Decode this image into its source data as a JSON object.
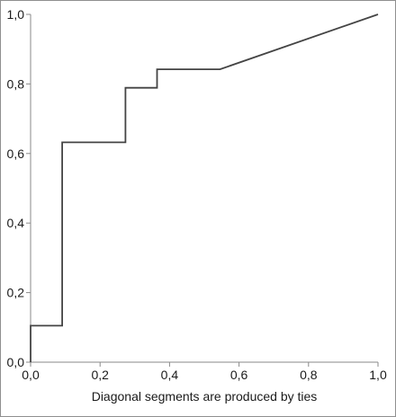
{
  "chart_data": {
    "type": "line",
    "title": "",
    "xlabel": "Diagonal segments are produced by ties",
    "ylabel": "",
    "xlim": [
      0,
      1
    ],
    "ylim": [
      0,
      1
    ],
    "x_ticks": [
      0,
      0.2,
      0.4,
      0.6,
      0.8,
      1.0
    ],
    "y_ticks": [
      0,
      0.2,
      0.4,
      0.6,
      0.8,
      1.0
    ],
    "x_tick_labels": [
      "0,0",
      "0,2",
      "0,4",
      "0,6",
      "0,8",
      "1,0"
    ],
    "y_tick_labels": [
      "0,0",
      "0,2",
      "0,4",
      "0,6",
      "0,8",
      "1,0"
    ],
    "grid": false,
    "legend": "none",
    "line_color": "#444444",
    "axis_color": "#8a8a8a",
    "series": [
      {
        "points": [
          [
            0.0,
            0.0
          ],
          [
            0.0,
            0.105
          ],
          [
            0.091,
            0.105
          ],
          [
            0.091,
            0.632
          ],
          [
            0.273,
            0.632
          ],
          [
            0.273,
            0.789
          ],
          [
            0.364,
            0.789
          ],
          [
            0.364,
            0.842
          ],
          [
            0.545,
            0.842
          ],
          [
            1.0,
            1.0
          ]
        ]
      }
    ]
  }
}
